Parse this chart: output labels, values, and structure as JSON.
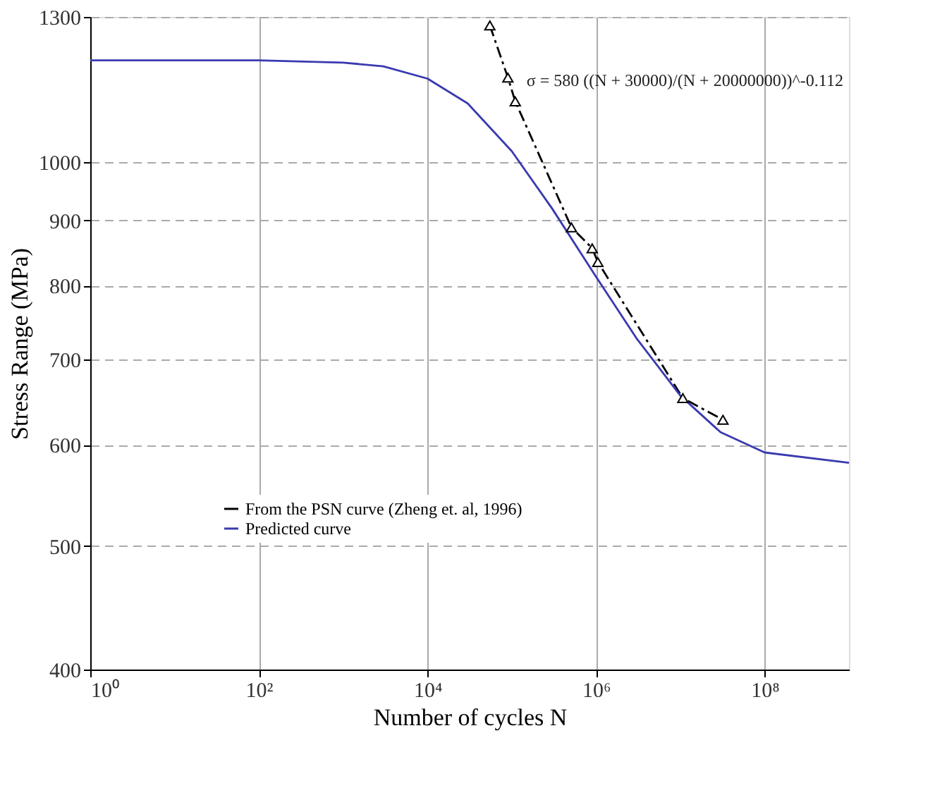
{
  "chart_data": {
    "type": "line",
    "xlabel": "Number of cycles N",
    "ylabel": "Stress Range (MPa)",
    "log": "xy",
    "grid": true,
    "legend": "bottom left",
    "xlim": [
      1,
      1000000000
    ],
    "ylim": [
      400,
      1300
    ],
    "xticks": [
      {
        "value": 1,
        "label": "10⁰"
      },
      {
        "value": 100,
        "label": "10²"
      },
      {
        "value": 10000,
        "label": "10⁴"
      },
      {
        "value": 1000000,
        "label": "10⁶"
      },
      {
        "value": 100000000,
        "label": "10⁸"
      }
    ],
    "yticks": [
      400,
      500,
      600,
      700,
      800,
      900,
      1000,
      1300
    ],
    "annotations": [
      "σ = 580 ((N + 30000)/(N + 20000000))^-0.112"
    ],
    "series": [
      {
        "name": "From the PSN curve (Zheng et. al, 1996)",
        "color": "#000000",
        "line_style": "dashed",
        "marker": "triangle",
        "x": [
          55000,
          90000,
          110000,
          510000,
          900000,
          1050000,
          10700000,
          32000000
        ],
        "values": [
          1280,
          1165,
          1116,
          889,
          856,
          835,
          653,
          628
        ]
      },
      {
        "name": "Predicted curve",
        "color": "#3a3ab0",
        "line_style": "solid",
        "marker": "none",
        "x": [
          1,
          100,
          1000,
          3000,
          10000,
          30000,
          100000,
          300000,
          1000000,
          3000000,
          10000000,
          30000000,
          100000000,
          1000000000
        ],
        "values": [
          1202,
          1202,
          1197,
          1189,
          1163,
          1112,
          1020,
          920,
          813,
          728,
          656,
          614,
          592,
          581
        ]
      }
    ]
  }
}
